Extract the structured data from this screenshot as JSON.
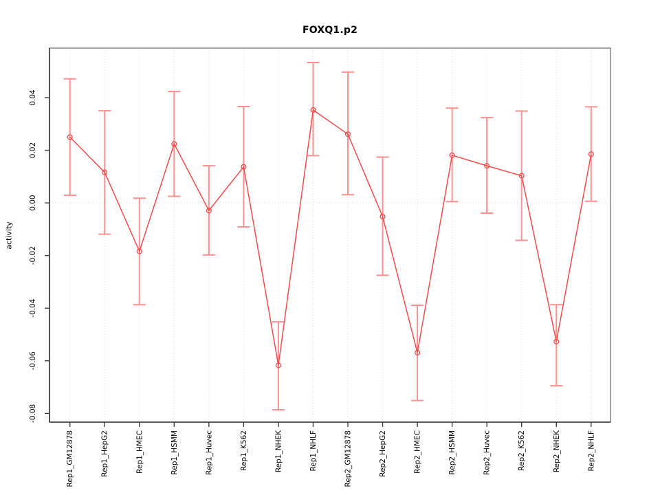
{
  "figure": {
    "window_title": "R Graphics plot",
    "background": "#ffffff"
  },
  "chart_data": {
    "type": "line",
    "title": "FOXQ1.p2",
    "xlabel": "",
    "ylabel": "activity",
    "legend": "none",
    "grid": "dotted vertical gridline at every category; dotted horizontal line at y=0",
    "point_style": "open red circles with red connecting line and red error bars with caps",
    "categories": [
      "Rep1_GM12878",
      "Rep1_HepG2",
      "Rep1_HMEC",
      "Rep1_HSMM",
      "Rep1_Huvec",
      "Rep1_K562",
      "Rep1_NHEK",
      "Rep1_NHLF",
      "Rep2_GM12878",
      "Rep2_HepG2",
      "Rep2_HMEC",
      "Rep2_HSMM",
      "Rep2_Huvec",
      "Rep2_K562",
      "Rep2_NHEK",
      "Rep2_NHLF"
    ],
    "series": [
      {
        "name": "activity",
        "values": [
          0.025,
          0.0116,
          -0.0184,
          0.0224,
          -0.0029,
          0.0137,
          -0.0617,
          0.0353,
          0.0261,
          -0.0052,
          -0.0569,
          0.0181,
          0.0141,
          0.0103,
          -0.0527,
          0.0185
        ]
      }
    ],
    "error_low": [
      0.0029,
      -0.0119,
      -0.0387,
      0.0025,
      -0.0198,
      -0.0091,
      -0.0786,
      0.018,
      0.0031,
      -0.0275,
      -0.0751,
      0.0005,
      -0.0039,
      -0.0142,
      -0.0695,
      0.0006
    ],
    "error_high": [
      0.0471,
      0.035,
      0.0018,
      0.0423,
      0.0141,
      0.0366,
      -0.0452,
      0.0533,
      0.0497,
      0.0174,
      -0.0389,
      0.036,
      0.0324,
      0.0349,
      -0.0387,
      0.0365
    ],
    "yticks": [
      0.04,
      0.02,
      0.0,
      -0.02,
      -0.04,
      -0.06,
      -0.08
    ],
    "ylim": [
      -0.0833,
      0.0588
    ],
    "colors": {
      "line": "#f54b4b",
      "point": "#f54b4b",
      "error_bar": "#ff9090",
      "grid": "#dcdcdc",
      "zero_line": "#e0e0e0",
      "box": "#9a9a9a",
      "axis": "#3f3f3f",
      "text": "#000000"
    }
  }
}
